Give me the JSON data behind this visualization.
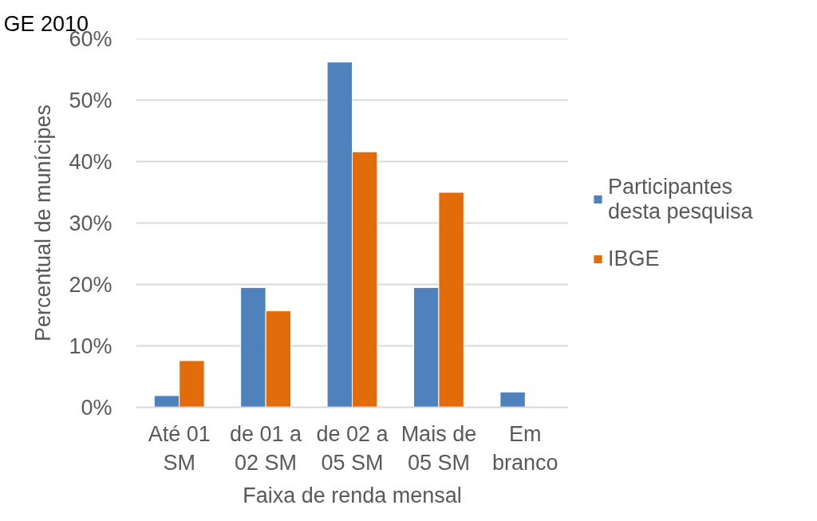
{
  "chart_data": {
    "type": "bar",
    "title": "GE 2010",
    "xlabel": "Faixa de renda mensal",
    "ylabel": "Percentual de munícipes",
    "categories": [
      "Até 01 SM",
      "de 01 a 02 SM",
      "de 02 a 05 SM",
      "Mais de 05 SM",
      "Em branco"
    ],
    "series": [
      {
        "name": "Participantes desta pesquisa",
        "color": "#4f81bd",
        "values": [
          1.9,
          19.5,
          56.2,
          19.5,
          2.5
        ]
      },
      {
        "name": "IBGE",
        "color": "#e36c0a",
        "values": [
          7.6,
          15.7,
          41.6,
          35.0,
          null
        ]
      }
    ],
    "ylim": [
      0,
      60
    ],
    "yticks": [
      {
        "value": 0,
        "label": "0%"
      },
      {
        "value": 10,
        "label": "10%"
      },
      {
        "value": 20,
        "label": "20%"
      },
      {
        "value": 30,
        "label": "30%"
      },
      {
        "value": 40,
        "label": "40%"
      },
      {
        "value": 50,
        "label": "50%"
      },
      {
        "value": 60,
        "label": "60%"
      }
    ],
    "grid": "y",
    "legend": "right"
  }
}
